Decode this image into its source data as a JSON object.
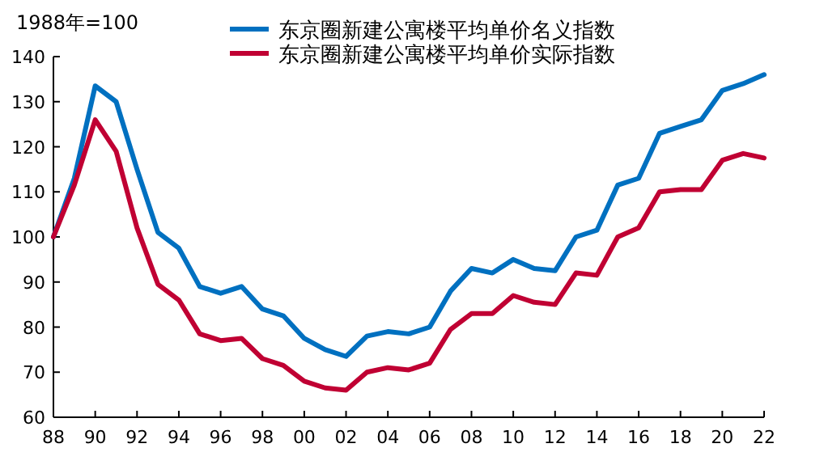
{
  "chart_data": {
    "type": "line",
    "ylabel": "1988年=100",
    "legend": "top",
    "grid": false,
    "x": [
      1988,
      1989,
      1990,
      1991,
      1992,
      1993,
      1994,
      1995,
      1996,
      1997,
      1998,
      1999,
      2000,
      2001,
      2002,
      2003,
      2004,
      2005,
      2006,
      2007,
      2008,
      2009,
      2010,
      2011,
      2012,
      2013,
      2014,
      2015,
      2016,
      2017,
      2018,
      2019,
      2020,
      2021,
      2022
    ],
    "xlim": [
      1988,
      2022
    ],
    "xticks": [
      {
        "value": 1988,
        "label": "88"
      },
      {
        "value": 1990,
        "label": "90"
      },
      {
        "value": 1992,
        "label": "92"
      },
      {
        "value": 1994,
        "label": "94"
      },
      {
        "value": 1996,
        "label": "96"
      },
      {
        "value": 1998,
        "label": "98"
      },
      {
        "value": 2000,
        "label": "00"
      },
      {
        "value": 2002,
        "label": "02"
      },
      {
        "value": 2004,
        "label": "04"
      },
      {
        "value": 2006,
        "label": "06"
      },
      {
        "value": 2008,
        "label": "08"
      },
      {
        "value": 2010,
        "label": "10"
      },
      {
        "value": 2012,
        "label": "12"
      },
      {
        "value": 2014,
        "label": "14"
      },
      {
        "value": 2016,
        "label": "16"
      },
      {
        "value": 2018,
        "label": "18"
      },
      {
        "value": 2020,
        "label": "20"
      },
      {
        "value": 2022,
        "label": "22"
      }
    ],
    "ylim": [
      60,
      140
    ],
    "yticks": [
      60,
      70,
      80,
      90,
      100,
      110,
      120,
      130,
      140
    ],
    "series": [
      {
        "name": "东京圈新建公寓楼平均单价名义指数",
        "color": "#0070c0",
        "values": [
          100,
          113,
          133.5,
          130,
          115,
          101,
          97.5,
          89,
          87.5,
          89,
          84,
          82.5,
          77.5,
          75,
          73.5,
          78,
          79,
          78.5,
          80,
          88,
          93,
          92,
          95,
          93,
          92.5,
          100,
          101.5,
          111.5,
          113,
          123,
          124.5,
          126,
          132.5,
          134,
          136
        ]
      },
      {
        "name": "东京圈新建公寓楼平均单价实际指数",
        "color": "#c00033",
        "values": [
          100,
          111.5,
          126,
          119,
          102,
          89.5,
          86,
          78.5,
          77,
          77.5,
          73,
          71.5,
          68,
          66.5,
          66,
          70,
          71,
          70.5,
          72,
          79.5,
          83,
          83,
          87,
          85.5,
          85,
          92,
          91.5,
          100,
          102,
          110,
          110.5,
          110.5,
          117,
          118.5,
          117.5
        ]
      }
    ]
  }
}
